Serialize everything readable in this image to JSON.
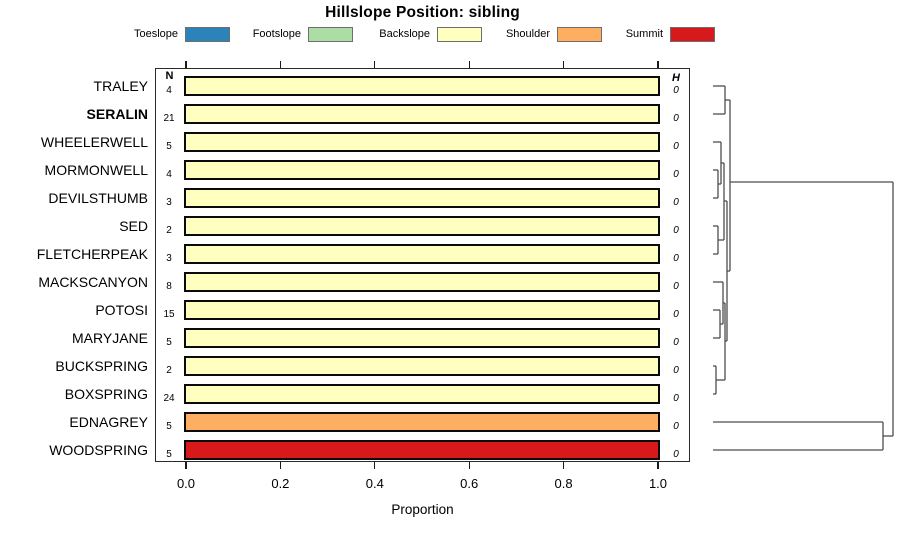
{
  "chart_data": {
    "type": "bar",
    "subtype": "horizontal-stacked-proportion",
    "title": "Hillslope Position: sibling",
    "xlabel": "Proportion",
    "x_ticks": [
      "0.0",
      "0.2",
      "0.4",
      "0.6",
      "0.8",
      "1.0"
    ],
    "x_range": [
      0,
      1
    ],
    "grid": false,
    "legend_position": "top",
    "columns": {
      "n_header": "N",
      "h_header": "H"
    },
    "categories": [
      "Toeslope",
      "Footslope",
      "Backslope",
      "Shoulder",
      "Summit"
    ],
    "palette": {
      "Toeslope": "#2B83BA",
      "Footslope": "#ABDDA4",
      "Backslope": "#FFFFBF",
      "Shoulder": "#FDAE61",
      "Summit": "#D7191C"
    },
    "rows": [
      {
        "label": "TRALEY",
        "bold": false,
        "n": "4",
        "h": "0",
        "segments": [
          {
            "category": "Backslope",
            "proportion": 1.0
          }
        ]
      },
      {
        "label": "SERALIN",
        "bold": true,
        "n": "21",
        "h": "0",
        "segments": [
          {
            "category": "Backslope",
            "proportion": 1.0
          }
        ]
      },
      {
        "label": "WHEELERWELL",
        "bold": false,
        "n": "5",
        "h": "0",
        "segments": [
          {
            "category": "Backslope",
            "proportion": 1.0
          }
        ]
      },
      {
        "label": "MORMONWELL",
        "bold": false,
        "n": "4",
        "h": "0",
        "segments": [
          {
            "category": "Backslope",
            "proportion": 1.0
          }
        ]
      },
      {
        "label": "DEVILSTHUMB",
        "bold": false,
        "n": "3",
        "h": "0",
        "segments": [
          {
            "category": "Backslope",
            "proportion": 1.0
          }
        ]
      },
      {
        "label": "SED",
        "bold": false,
        "n": "2",
        "h": "0",
        "segments": [
          {
            "category": "Backslope",
            "proportion": 1.0
          }
        ]
      },
      {
        "label": "FLETCHERPEAK",
        "bold": false,
        "n": "3",
        "h": "0",
        "segments": [
          {
            "category": "Backslope",
            "proportion": 1.0
          }
        ]
      },
      {
        "label": "MACKSCANYON",
        "bold": false,
        "n": "8",
        "h": "0",
        "segments": [
          {
            "category": "Backslope",
            "proportion": 1.0
          }
        ]
      },
      {
        "label": "POTOSI",
        "bold": false,
        "n": "15",
        "h": "0",
        "segments": [
          {
            "category": "Backslope",
            "proportion": 1.0
          }
        ]
      },
      {
        "label": "MARYJANE",
        "bold": false,
        "n": "5",
        "h": "0",
        "segments": [
          {
            "category": "Backslope",
            "proportion": 1.0
          }
        ]
      },
      {
        "label": "BUCKSPRING",
        "bold": false,
        "n": "2",
        "h": "0",
        "segments": [
          {
            "category": "Backslope",
            "proportion": 1.0
          }
        ]
      },
      {
        "label": "BOXSPRING",
        "bold": false,
        "n": "24",
        "h": "0",
        "segments": [
          {
            "category": "Backslope",
            "proportion": 1.0
          }
        ]
      },
      {
        "label": "EDNAGREY",
        "bold": false,
        "n": "5",
        "h": "0",
        "segments": [
          {
            "category": "Shoulder",
            "proportion": 1.0
          }
        ]
      },
      {
        "label": "WOODSPRING",
        "bold": false,
        "n": "5",
        "h": "0",
        "segments": [
          {
            "category": "Summit",
            "proportion": 1.0
          }
        ]
      }
    ],
    "dendrogram": {
      "orientation": "leaves-left-root-right",
      "pairs": [
        [
          "TRALEY",
          "SERALIN"
        ],
        [
          "MORMONWELL",
          "DEVILSTHUMB"
        ],
        [
          "SED",
          "FLETCHERPEAK"
        ],
        [
          "POTOSI",
          "MARYJANE"
        ],
        [
          "BUCKSPRING",
          "BOXSPRING"
        ],
        [
          "EDNAGREY",
          "WOODSPRING"
        ]
      ],
      "segments": [
        [
          713,
          86,
          725,
          86
        ],
        [
          713,
          114,
          725,
          114
        ],
        [
          725,
          86,
          725,
          114
        ],
        [
          725,
          100,
          730,
          100
        ],
        [
          713,
          142,
          721,
          142
        ],
        [
          713,
          170,
          718,
          170
        ],
        [
          713,
          198,
          718,
          198
        ],
        [
          718,
          170,
          718,
          198
        ],
        [
          718,
          184,
          721,
          184
        ],
        [
          721,
          142,
          721,
          184
        ],
        [
          721,
          163,
          724,
          163
        ],
        [
          713,
          226,
          718,
          226
        ],
        [
          713,
          254,
          718,
          254
        ],
        [
          718,
          226,
          718,
          254
        ],
        [
          718,
          240,
          724,
          240
        ],
        [
          724,
          163,
          724,
          240
        ],
        [
          724,
          201,
          727,
          201
        ],
        [
          713,
          282,
          723,
          282
        ],
        [
          713,
          310,
          720,
          310
        ],
        [
          713,
          338,
          720,
          338
        ],
        [
          720,
          310,
          720,
          338
        ],
        [
          720,
          324,
          723,
          324
        ],
        [
          723,
          282,
          723,
          324
        ],
        [
          723,
          303,
          725,
          303
        ],
        [
          713,
          366,
          716,
          366
        ],
        [
          713,
          394,
          716,
          394
        ],
        [
          716,
          366,
          716,
          394
        ],
        [
          716,
          380,
          725,
          380
        ],
        [
          725,
          303,
          725,
          380
        ],
        [
          725,
          341,
          727,
          341
        ],
        [
          727,
          201,
          727,
          341
        ],
        [
          727,
          271,
          730,
          271
        ],
        [
          730,
          100,
          730,
          271
        ],
        [
          730,
          182,
          893,
          182
        ],
        [
          713,
          422,
          883,
          422
        ],
        [
          713,
          450,
          883,
          450
        ],
        [
          883,
          422,
          883,
          450
        ],
        [
          883,
          436,
          893,
          436
        ],
        [
          893,
          182,
          893,
          436
        ]
      ]
    }
  }
}
